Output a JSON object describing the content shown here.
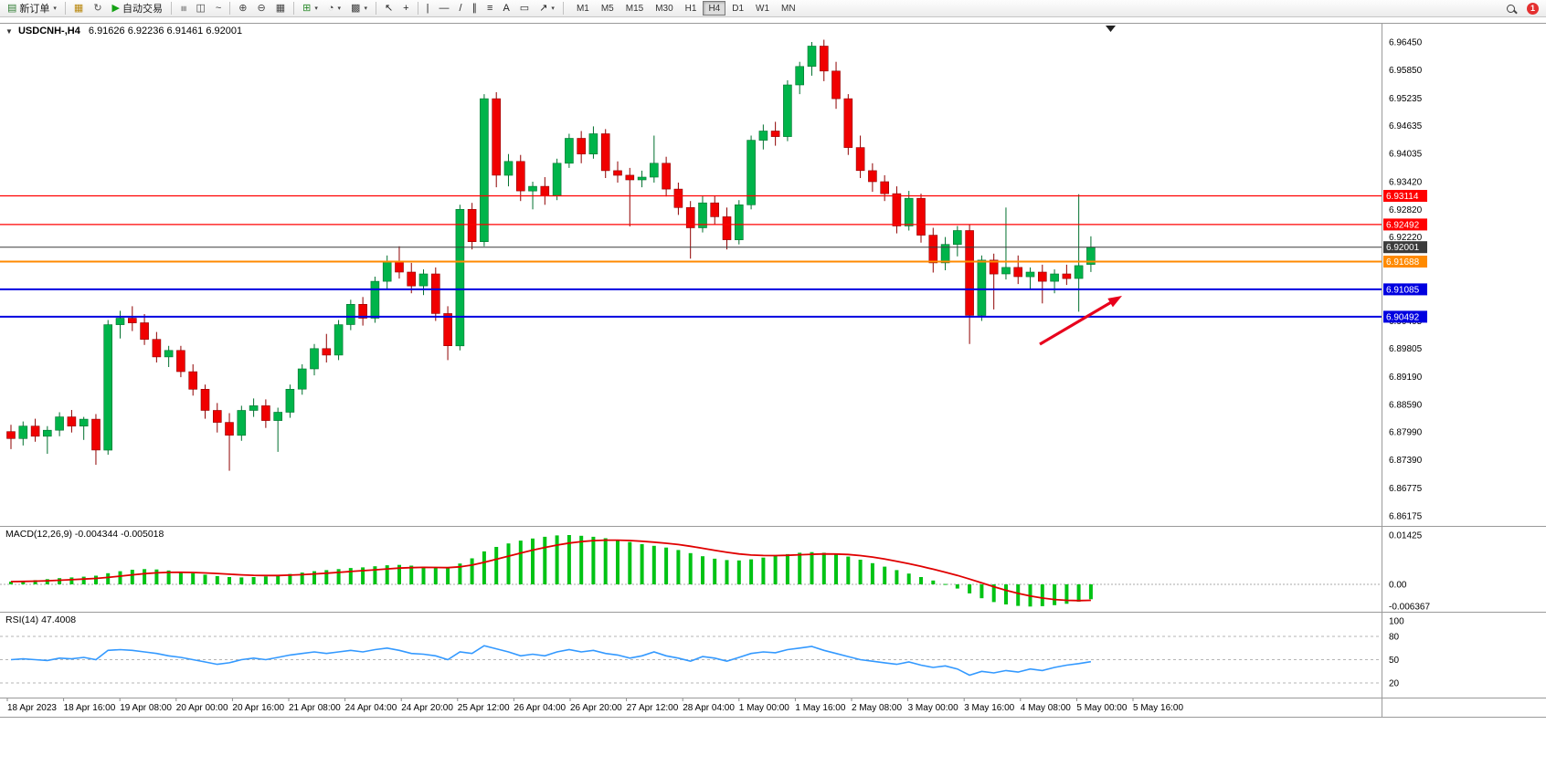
{
  "toolbar": {
    "badge_count": "1",
    "items": [
      {
        "type": "button",
        "name": "new-order-button",
        "icon": "new-order-icon",
        "glyph": "▤",
        "color": "#2f7d32",
        "label": "新订单",
        "caret": true
      },
      {
        "type": "sep"
      },
      {
        "type": "button",
        "name": "profiles-button",
        "icon": "profiles-icon",
        "glyph": "▦",
        "color": "#b8860b"
      },
      {
        "type": "button",
        "name": "refresh-button",
        "icon": "refresh-icon",
        "glyph": "↻",
        "color": "#555555"
      },
      {
        "type": "button",
        "name": "auto-trading-button",
        "icon": "play-icon",
        "glyph": "▶",
        "color": "#15a215",
        "label": "自动交易"
      },
      {
        "type": "sep"
      },
      {
        "type": "button",
        "name": "bar-chart-button",
        "icon": "bar-chart-icon",
        "glyph": "≡",
        "color": "#444444",
        "rot": true
      },
      {
        "type": "button",
        "name": "candlestick-chart-button",
        "icon": "candlestick-icon",
        "glyph": "◫",
        "color": "#444444"
      },
      {
        "type": "button",
        "name": "line-chart-button",
        "icon": "line-chart-icon",
        "glyph": "~",
        "color": "#444444"
      },
      {
        "type": "sep"
      },
      {
        "type": "button",
        "name": "zoom-in-button",
        "icon": "zoom-in-icon",
        "glyph": "⊕",
        "color": "#444444"
      },
      {
        "type": "button",
        "name": "zoom-out-button",
        "icon": "zoom-out-icon",
        "glyph": "⊖",
        "color": "#444444"
      },
      {
        "type": "button",
        "name": "tile-windows-button",
        "icon": "tile-windows-icon",
        "glyph": "▦",
        "color": "#444444"
      },
      {
        "type": "sep"
      },
      {
        "type": "button",
        "name": "indicators-button",
        "icon": "indicators-icon",
        "glyph": "⊞",
        "color": "#2a8a2a",
        "caret": true
      },
      {
        "type": "button",
        "name": "periods-button",
        "icon": "clock-icon",
        "glyph": "◔",
        "color": "#444444",
        "caret": true
      },
      {
        "type": "button",
        "name": "templates-button",
        "icon": "template-icon",
        "glyph": "▩",
        "color": "#444444",
        "caret": true
      },
      {
        "type": "sep"
      },
      {
        "type": "button",
        "name": "cursor-button",
        "icon": "cursor-icon",
        "glyph": "↖",
        "color": "#222222"
      },
      {
        "type": "button",
        "name": "crosshair-button",
        "icon": "crosshair-icon",
        "glyph": "+",
        "color": "#222222"
      },
      {
        "type": "sep"
      },
      {
        "type": "button",
        "name": "vertical-line-button",
        "icon": "vertical-line-icon",
        "glyph": "|",
        "color": "#222222"
      },
      {
        "type": "button",
        "name": "horizontal-line-button",
        "icon": "horizontal-line-icon",
        "glyph": "—",
        "color": "#222222"
      },
      {
        "type": "button",
        "name": "trendline-button",
        "icon": "trendline-icon",
        "glyph": "/",
        "color": "#222222"
      },
      {
        "type": "button",
        "name": "channel-button",
        "icon": "channel-icon",
        "glyph": "∥",
        "color": "#222222"
      },
      {
        "type": "button",
        "name": "fibonacci-button",
        "icon": "fibonacci-icon",
        "glyph": "≡",
        "color": "#222222"
      },
      {
        "type": "button",
        "name": "text-button",
        "icon": "text-icon",
        "glyph": "A",
        "color": "#222222"
      },
      {
        "type": "button",
        "name": "text-label-button",
        "icon": "text-label-icon",
        "glyph": "▭",
        "color": "#222222"
      },
      {
        "type": "button",
        "name": "arrows-button",
        "icon": "arrow-objects-icon",
        "glyph": "↗",
        "color": "#222222",
        "caret": true
      },
      {
        "type": "sep"
      }
    ],
    "timeframes": {
      "options": [
        "M1",
        "M5",
        "M15",
        "M30",
        "H1",
        "H4",
        "D1",
        "W1",
        "MN"
      ],
      "active": "H4"
    }
  },
  "chart": {
    "title_symbol": "USDCNH-,H4",
    "title_ohlc": "6.91626 6.92236 6.91461 6.92001"
  },
  "indicators": {
    "macd_label": "MACD(12,26,9) -0.004344 -0.005018",
    "rsi_label": "RSI(14) 47.4008"
  },
  "chart_data": {
    "type": "candlestick",
    "symbol": "USDCNH",
    "timeframe": "H4",
    "colors": {
      "up": "#00b44a",
      "up_border": "#00702e",
      "down": "#f00000",
      "down_border": "#8f0000",
      "macd_hist": "#00c314",
      "macd_signal": "#e00000",
      "rsi": "#3399ff",
      "axis_text": "#000000",
      "separator": "#9a9a9a"
    },
    "price_axis": [
      "6.96450",
      "6.95850",
      "6.95235",
      "6.94635",
      "6.94035",
      "6.93420",
      "6.92820",
      "6.92220",
      "6.90405",
      "6.89805",
      "6.89190",
      "6.88590",
      "6.87990",
      "6.87390",
      "6.86775",
      "6.86175"
    ],
    "hlines": [
      {
        "name": "red-resistance-line-1",
        "price": 6.93114,
        "label": "6.93114",
        "color": "#ff0000",
        "width": 1.2,
        "interactable": true
      },
      {
        "name": "red-resistance-line-2",
        "price": 6.92492,
        "label": "6.92492",
        "color": "#ff0000",
        "width": 1.2,
        "interactable": true
      },
      {
        "name": "current-price-line",
        "price": 6.92001,
        "label": "6.92001",
        "color": "#3c3c3c",
        "width": 1,
        "interactable": false
      },
      {
        "name": "orange-level-line",
        "price": 6.91688,
        "label": "6.91688",
        "color": "#ff8a00",
        "width": 2,
        "interactable": true
      },
      {
        "name": "blue-support-line-1",
        "price": 6.91085,
        "label": "6.91085",
        "color": "#0000e0",
        "width": 2,
        "interactable": true
      },
      {
        "name": "blue-support-line-2",
        "price": 6.90492,
        "label": "6.90492",
        "color": "#0000e0",
        "width": 2,
        "interactable": true
      }
    ],
    "candles": [
      [
        6.88,
        6.8815,
        6.8762,
        6.8785
      ],
      [
        6.8785,
        6.8822,
        6.877,
        6.8812
      ],
      [
        6.8812,
        6.8828,
        6.8778,
        6.879
      ],
      [
        6.879,
        6.8812,
        6.8752,
        6.8803
      ],
      [
        6.8803,
        6.8842,
        6.879,
        6.8832
      ],
      [
        6.8832,
        6.8847,
        6.8798,
        6.8812
      ],
      [
        6.8812,
        6.8832,
        6.8782,
        6.8827
      ],
      [
        6.8827,
        6.8838,
        6.8728,
        6.876
      ],
      [
        6.876,
        6.9042,
        6.875,
        6.9032
      ],
      [
        6.9032,
        6.9062,
        6.9002,
        6.9046
      ],
      [
        6.9046,
        6.9072,
        6.9018,
        6.9036
      ],
      [
        6.9036,
        6.9055,
        6.8988,
        6.9
      ],
      [
        6.9,
        6.9016,
        6.895,
        6.8962
      ],
      [
        6.8962,
        6.8986,
        6.894,
        6.8976
      ],
      [
        6.8976,
        6.8986,
        6.8918,
        6.893
      ],
      [
        6.893,
        6.8946,
        6.8878,
        6.8892
      ],
      [
        6.8892,
        6.8902,
        6.8828,
        6.8846
      ],
      [
        6.8846,
        6.8862,
        6.8798,
        6.882
      ],
      [
        6.882,
        6.884,
        6.8715,
        6.8792
      ],
      [
        6.8792,
        6.8856,
        6.878,
        6.8846
      ],
      [
        6.8846,
        6.8872,
        6.8832,
        6.8856
      ],
      [
        6.8856,
        6.887,
        6.8808,
        6.8824
      ],
      [
        6.8824,
        6.8852,
        6.8756,
        6.8842
      ],
      [
        6.8842,
        6.8902,
        6.883,
        6.8892
      ],
      [
        6.8892,
        6.8946,
        6.888,
        6.8936
      ],
      [
        6.8936,
        6.899,
        6.8922,
        6.898
      ],
      [
        6.898,
        6.9012,
        6.895,
        6.8966
      ],
      [
        6.8966,
        6.9042,
        6.8955,
        6.9032
      ],
      [
        6.9032,
        6.9086,
        6.902,
        6.9076
      ],
      [
        6.9076,
        6.9092,
        6.903,
        6.9046
      ],
      [
        6.9046,
        6.9136,
        6.9036,
        6.9126
      ],
      [
        6.9126,
        6.9182,
        6.911,
        6.917
      ],
      [
        6.917,
        6.9202,
        6.9132,
        6.9146
      ],
      [
        6.9146,
        6.9166,
        6.91,
        6.9116
      ],
      [
        6.9116,
        6.9152,
        6.9096,
        6.9142
      ],
      [
        6.9142,
        6.9156,
        6.904,
        6.9056
      ],
      [
        6.9056,
        6.9072,
        6.8955,
        6.8986
      ],
      [
        6.8986,
        6.9292,
        6.8976,
        6.9282
      ],
      [
        6.9282,
        6.9296,
        6.9195,
        6.9212
      ],
      [
        6.9212,
        6.9532,
        6.9202,
        6.9522
      ],
      [
        6.9522,
        6.9536,
        6.933,
        6.9356
      ],
      [
        6.9356,
        6.9402,
        6.9332,
        6.9386
      ],
      [
        6.9386,
        6.94,
        6.93,
        6.9322
      ],
      [
        6.9322,
        6.9342,
        6.9282,
        6.9332
      ],
      [
        6.9332,
        6.9352,
        6.9292,
        6.9312
      ],
      [
        6.9312,
        6.9392,
        6.9302,
        6.9382
      ],
      [
        6.9382,
        6.9446,
        6.9372,
        6.9436
      ],
      [
        6.9436,
        6.9452,
        6.9382,
        6.9402
      ],
      [
        6.9402,
        6.9462,
        6.9392,
        6.9446
      ],
      [
        6.9446,
        6.9456,
        6.935,
        6.9366
      ],
      [
        6.9366,
        6.9386,
        6.934,
        6.9356
      ],
      [
        6.9356,
        6.9372,
        6.9245,
        6.9346
      ],
      [
        6.9346,
        6.9366,
        6.933,
        6.9352
      ],
      [
        6.9352,
        6.9442,
        6.934,
        6.9382
      ],
      [
        6.9382,
        6.9396,
        6.931,
        6.9326
      ],
      [
        6.9326,
        6.934,
        6.927,
        6.9286
      ],
      [
        6.9286,
        6.93,
        6.9175,
        6.9242
      ],
      [
        6.9242,
        6.9312,
        6.9232,
        6.9296
      ],
      [
        6.9296,
        6.9312,
        6.925,
        6.9266
      ],
      [
        6.9266,
        6.9286,
        6.9195,
        6.9216
      ],
      [
        6.9216,
        6.9302,
        6.9206,
        6.9292
      ],
      [
        6.9292,
        6.9442,
        6.9282,
        6.9432
      ],
      [
        6.9432,
        6.9466,
        6.9412,
        6.9452
      ],
      [
        6.9452,
        6.9472,
        6.942,
        6.944
      ],
      [
        6.944,
        6.9562,
        6.943,
        6.9552
      ],
      [
        6.9552,
        6.9602,
        6.9532,
        6.9592
      ],
      [
        6.9592,
        6.9645,
        6.9572,
        6.9636
      ],
      [
        6.9636,
        6.965,
        6.956,
        6.9582
      ],
      [
        6.9582,
        6.9602,
        6.95,
        6.9522
      ],
      [
        6.9522,
        6.9532,
        6.94,
        6.9416
      ],
      [
        6.9416,
        6.9442,
        6.935,
        6.9366
      ],
      [
        6.9366,
        6.9382,
        6.932,
        6.9342
      ],
      [
        6.9342,
        6.9356,
        6.93,
        6.9316
      ],
      [
        6.9316,
        6.9332,
        6.923,
        6.9246
      ],
      [
        6.9246,
        6.9322,
        6.9236,
        6.9306
      ],
      [
        6.9306,
        6.9316,
        6.921,
        6.9226
      ],
      [
        6.9226,
        6.9242,
        6.9145,
        6.9166
      ],
      [
        6.9166,
        6.9222,
        6.915,
        6.9206
      ],
      [
        6.9206,
        6.9246,
        6.918,
        6.9236
      ],
      [
        6.9236,
        6.925,
        6.899,
        6.9052
      ],
      [
        6.9052,
        6.9182,
        6.904,
        6.9172
      ],
      [
        6.9172,
        6.9186,
        6.9065,
        6.9142
      ],
      [
        6.9142,
        6.9286,
        6.913,
        6.9156
      ],
      [
        6.9156,
        6.9182,
        6.912,
        6.9136
      ],
      [
        6.9136,
        6.9156,
        6.9108,
        6.9146
      ],
      [
        6.9146,
        6.9162,
        6.9078,
        6.9126
      ],
      [
        6.9126,
        6.9152,
        6.91,
        6.9142
      ],
      [
        6.9142,
        6.9162,
        6.9118,
        6.9132
      ],
      [
        6.9132,
        6.9315,
        6.906,
        6.916
      ],
      [
        6.91626,
        6.92236,
        6.91461,
        6.92001
      ]
    ],
    "macd": {
      "hist": [
        0.0008,
        0.001,
        0.0012,
        0.0015,
        0.0018,
        0.002,
        0.0022,
        0.0025,
        0.0032,
        0.0038,
        0.0042,
        0.0044,
        0.0043,
        0.004,
        0.0036,
        0.0032,
        0.0028,
        0.0024,
        0.0021,
        0.002,
        0.0021,
        0.0023,
        0.0026,
        0.003,
        0.0034,
        0.0038,
        0.0041,
        0.0044,
        0.0047,
        0.0049,
        0.0052,
        0.0055,
        0.0056,
        0.0054,
        0.0051,
        0.0048,
        0.0046,
        0.006,
        0.0075,
        0.0095,
        0.0108,
        0.0118,
        0.0126,
        0.0132,
        0.0137,
        0.0141,
        0.0142,
        0.014,
        0.0137,
        0.0133,
        0.0128,
        0.0122,
        0.0116,
        0.0111,
        0.0106,
        0.0099,
        0.009,
        0.0081,
        0.0074,
        0.007,
        0.0069,
        0.0072,
        0.0077,
        0.0082,
        0.0087,
        0.0091,
        0.0093,
        0.0091,
        0.0087,
        0.008,
        0.0071,
        0.0061,
        0.0051,
        0.0041,
        0.0031,
        0.0021,
        0.0011,
        0.0001,
        -0.0012,
        -0.0026,
        -0.004,
        -0.0051,
        -0.0058,
        -0.0062,
        -0.0064,
        -0.0063,
        -0.006,
        -0.0056,
        -0.005,
        -0.0043
      ],
      "current_main": "-0.004344",
      "current_signal": "-0.005018",
      "scale": [
        {
          "v": 0.01425,
          "label": "0.01425"
        },
        {
          "v": 0,
          "label": "0.00"
        },
        {
          "v": -0.006367,
          "label": "-0.006367"
        }
      ]
    },
    "rsi": {
      "values": [
        50,
        51,
        50,
        49,
        52,
        51,
        53,
        50,
        62,
        63,
        62,
        60,
        58,
        55,
        53,
        50,
        47,
        44,
        46,
        50,
        52,
        50,
        53,
        56,
        58,
        60,
        58,
        60,
        62,
        60,
        63,
        65,
        62,
        58,
        57,
        55,
        50,
        60,
        58,
        68,
        64,
        60,
        55,
        57,
        55,
        60,
        63,
        60,
        62,
        58,
        56,
        52,
        55,
        60,
        55,
        52,
        48,
        54,
        52,
        48,
        53,
        58,
        60,
        59,
        63,
        65,
        67,
        62,
        58,
        54,
        50,
        48,
        46,
        44,
        47,
        43,
        40,
        42,
        38,
        30,
        35,
        33,
        36,
        34,
        38,
        36,
        40,
        43,
        45,
        47.4
      ],
      "current": "47.4008",
      "levels": [
        80,
        50,
        20
      ],
      "scale": [
        {
          "v": 100,
          "label": "100"
        },
        {
          "v": 80,
          "label": "80"
        },
        {
          "v": 50,
          "label": "50"
        },
        {
          "v": 20,
          "label": "20"
        }
      ]
    },
    "time_axis": [
      "18 Apr 2023",
      "18 Apr 16:00",
      "19 Apr 08:00",
      "20 Apr 00:00",
      "20 Apr 16:00",
      "21 Apr 08:00",
      "24 Apr 04:00",
      "24 Apr 20:00",
      "25 Apr 12:00",
      "26 Apr 04:00",
      "26 Apr 20:00",
      "27 Apr 12:00",
      "28 Apr 04:00",
      "1 May 00:00",
      "1 May 16:00",
      "2 May 08:00",
      "3 May 00:00",
      "3 May 16:00",
      "4 May 08:00",
      "5 May 00:00",
      "5 May 16:00"
    ],
    "annotations": [
      {
        "type": "arrow",
        "from": [
          1138,
          377
        ],
        "to": [
          1228,
          324
        ],
        "color": "#e8001c"
      }
    ]
  }
}
